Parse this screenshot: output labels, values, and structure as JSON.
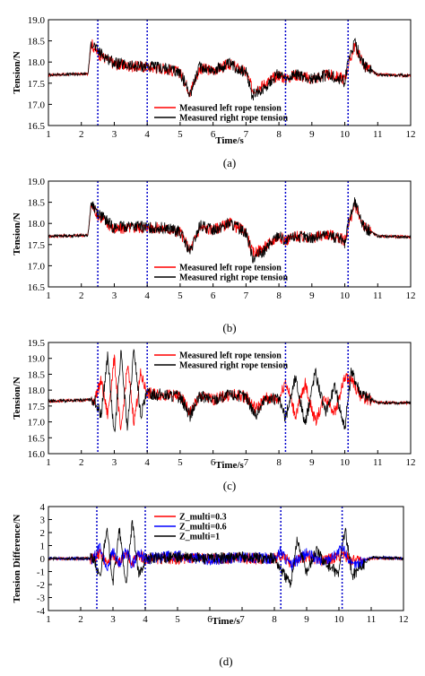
{
  "chart_data": [
    {
      "type": "line",
      "panel": "a",
      "caption": "(a)",
      "xlabel": "Time/s",
      "ylabel": "Tension/N",
      "xlim": [
        1,
        12
      ],
      "ylim": [
        16.5,
        19.0
      ],
      "xticks": [
        "1",
        "2",
        "3",
        "4",
        "5",
        "6",
        "7",
        "8",
        "9",
        "10",
        "11",
        "12"
      ],
      "yticks": [
        "16.5",
        "17.0",
        "17.5",
        "18.0",
        "18.5",
        "19.0"
      ],
      "vlines": [
        2.5,
        4.0,
        8.2,
        10.1
      ],
      "legend_position": "bottom-center",
      "series": [
        {
          "name": "Measured left rope tension",
          "color": "#ff0000",
          "x": [
            1,
            2.2,
            2.3,
            2.5,
            3,
            3.5,
            4,
            4.5,
            5,
            5.3,
            5.6,
            6,
            6.5,
            7,
            7.2,
            7.5,
            8,
            8.2,
            8.5,
            9,
            9.5,
            10,
            10.1,
            10.3,
            10.6,
            11,
            12
          ],
          "y": [
            17.7,
            17.72,
            18.45,
            18.2,
            17.95,
            17.9,
            17.88,
            17.85,
            17.75,
            17.3,
            17.85,
            17.8,
            17.95,
            17.75,
            17.35,
            17.45,
            17.7,
            17.6,
            17.7,
            17.6,
            17.7,
            17.6,
            17.9,
            18.4,
            17.9,
            17.7,
            17.68
          ]
        },
        {
          "name": "Measured right rope tension",
          "color": "#000000",
          "x": [
            1,
            2.2,
            2.3,
            2.5,
            3,
            3.5,
            4,
            4.5,
            5,
            5.3,
            5.6,
            6,
            6.5,
            7,
            7.2,
            7.5,
            8,
            8.2,
            8.5,
            9,
            9.5,
            10,
            10.1,
            10.3,
            10.6,
            11,
            12
          ],
          "y": [
            17.7,
            17.72,
            18.5,
            18.25,
            17.98,
            17.9,
            17.9,
            17.85,
            17.75,
            17.25,
            17.9,
            17.8,
            17.95,
            17.75,
            17.2,
            17.35,
            17.75,
            17.55,
            17.7,
            17.6,
            17.7,
            17.55,
            18.0,
            18.45,
            17.9,
            17.7,
            17.68
          ]
        }
      ]
    },
    {
      "type": "line",
      "panel": "b",
      "caption": "(b)",
      "xlabel": "",
      "ylabel": "Tension/N",
      "xlim": [
        1,
        12
      ],
      "ylim": [
        16.5,
        19.0
      ],
      "xticks": [
        "1",
        "2",
        "3",
        "4",
        "5",
        "6",
        "7",
        "8",
        "9",
        "10",
        "11",
        "12"
      ],
      "yticks": [
        "16.5",
        "17.0",
        "17.5",
        "18.0",
        "18.5",
        "19.0"
      ],
      "vlines": [
        2.5,
        4.0,
        8.2,
        10.1
      ],
      "legend_position": "bottom-center",
      "series": [
        {
          "name": "Measured left rope tension",
          "color": "#ff0000",
          "x": [
            1,
            2.2,
            2.3,
            2.5,
            3,
            3.5,
            4,
            4.5,
            5,
            5.3,
            5.6,
            6,
            6.5,
            7,
            7.2,
            7.5,
            8,
            8.2,
            8.5,
            9,
            9.5,
            10,
            10.1,
            10.3,
            10.6,
            11,
            12
          ],
          "y": [
            17.7,
            17.72,
            18.45,
            18.2,
            17.85,
            17.9,
            17.9,
            17.88,
            17.8,
            17.35,
            17.9,
            17.85,
            18.0,
            17.8,
            17.3,
            17.4,
            17.7,
            17.6,
            17.7,
            17.65,
            17.75,
            17.6,
            17.9,
            18.45,
            17.9,
            17.7,
            17.68
          ]
        },
        {
          "name": "Measured right rope tension",
          "color": "#000000",
          "x": [
            1,
            2.2,
            2.3,
            2.5,
            3,
            3.5,
            4,
            4.5,
            5,
            5.3,
            5.6,
            6,
            6.5,
            7,
            7.2,
            7.5,
            8,
            8.2,
            8.5,
            9,
            9.5,
            10,
            10.1,
            10.3,
            10.6,
            11,
            12
          ],
          "y": [
            17.7,
            17.72,
            18.5,
            18.25,
            17.9,
            17.95,
            17.9,
            17.9,
            17.8,
            17.3,
            17.95,
            17.85,
            18.0,
            17.8,
            17.2,
            17.3,
            17.75,
            17.55,
            17.7,
            17.65,
            17.75,
            17.55,
            18.0,
            18.5,
            17.9,
            17.7,
            17.68
          ]
        }
      ]
    },
    {
      "type": "line",
      "panel": "c",
      "caption": "(c)",
      "xlabel": "Time/s",
      "ylabel": "Tension/N",
      "xlim": [
        1,
        12
      ],
      "ylim": [
        16.0,
        19.5
      ],
      "xticks": [
        "1",
        "2",
        "3",
        "4",
        "5",
        "6",
        "7",
        "8",
        "9",
        "10",
        "11",
        "12"
      ],
      "yticks": [
        "16.0",
        "16.5",
        "17.0",
        "17.5",
        "18.0",
        "18.5",
        "19.0",
        "19.5"
      ],
      "vlines": [
        2.5,
        4.0,
        8.2,
        10.1
      ],
      "legend_position": "top-center",
      "series": [
        {
          "name": "Measured left rope tension",
          "color": "#ff0000",
          "x": [
            1,
            2.4,
            2.6,
            2.8,
            3.0,
            3.2,
            3.4,
            3.6,
            3.8,
            4.0,
            4.5,
            5,
            5.3,
            5.6,
            6,
            6.5,
            7,
            7.3,
            7.6,
            8,
            8.2,
            8.5,
            8.8,
            9.1,
            9.4,
            9.7,
            10.0,
            10.2,
            10.5,
            11,
            12
          ],
          "y": [
            17.65,
            17.7,
            18.3,
            17.2,
            19.0,
            16.6,
            18.8,
            17.0,
            18.5,
            17.9,
            17.85,
            17.8,
            17.3,
            17.8,
            17.7,
            17.85,
            17.8,
            17.4,
            17.75,
            17.7,
            18.3,
            17.2,
            18.2,
            17.0,
            17.8,
            17.3,
            18.4,
            18.3,
            17.8,
            17.6,
            17.6
          ]
        },
        {
          "name": "Measured right rope tension",
          "color": "#000000",
          "x": [
            1,
            2.4,
            2.6,
            2.8,
            3.0,
            3.2,
            3.4,
            3.6,
            3.8,
            4.0,
            4.5,
            5,
            5.3,
            5.6,
            6,
            6.5,
            7,
            7.3,
            7.6,
            8,
            8.2,
            8.5,
            8.8,
            9.1,
            9.4,
            9.7,
            10.0,
            10.2,
            10.5,
            11,
            12
          ],
          "y": [
            17.65,
            17.7,
            17.2,
            19.1,
            16.5,
            19.2,
            16.8,
            19.3,
            17.2,
            17.9,
            17.85,
            17.8,
            17.2,
            17.8,
            17.7,
            17.85,
            17.8,
            17.2,
            17.75,
            17.7,
            17.1,
            18.4,
            16.9,
            18.6,
            17.3,
            18.1,
            16.8,
            18.6,
            17.9,
            17.6,
            17.6
          ]
        }
      ]
    },
    {
      "type": "line",
      "panel": "d",
      "caption": "(d)",
      "xlabel": "Time/s",
      "ylabel": "Tension Difference/N",
      "xlim": [
        1,
        12
      ],
      "ylim": [
        -4,
        4
      ],
      "xticks": [
        "1",
        "2",
        "3",
        "4",
        "5",
        "6",
        "7",
        "8",
        "9",
        "10",
        "11",
        "12"
      ],
      "yticks": [
        "-4",
        "-3",
        "-2",
        "-1",
        "0",
        "1",
        "2",
        "3",
        "4"
      ],
      "vlines": [
        2.5,
        4.0,
        8.2,
        10.1
      ],
      "legend_position": "top-center",
      "series": [
        {
          "name": "Z_multi=0.3",
          "color": "#ff0000",
          "x": [
            1,
            2.4,
            2.6,
            2.8,
            3.0,
            3.2,
            3.4,
            3.6,
            3.8,
            4.0,
            5,
            6,
            7,
            8,
            8.2,
            8.5,
            9,
            9.5,
            10,
            10.1,
            10.2,
            10.4,
            11,
            12
          ],
          "y": [
            0,
            0,
            0.4,
            -0.4,
            0.3,
            -0.3,
            0.3,
            -0.3,
            0.3,
            0,
            0,
            0,
            0,
            0,
            0.3,
            -0.3,
            0.2,
            -0.2,
            0.2,
            0.4,
            0.2,
            -0.2,
            0,
            0
          ]
        },
        {
          "name": "Z_multi=0.6",
          "color": "#0000ff",
          "x": [
            1,
            2.4,
            2.6,
            2.8,
            3.0,
            3.2,
            3.4,
            3.6,
            3.8,
            4.0,
            5,
            6,
            7,
            8,
            8.2,
            8.5,
            9,
            9.5,
            10,
            10.1,
            10.2,
            10.4,
            11,
            12
          ],
          "y": [
            0,
            0,
            0.9,
            -0.8,
            0.6,
            -0.6,
            0.6,
            -0.5,
            0.5,
            0,
            0.2,
            -0.1,
            0.1,
            0,
            0.6,
            -0.6,
            0.4,
            -0.3,
            0.5,
            0.9,
            0.5,
            -0.6,
            0.1,
            0
          ]
        },
        {
          "name": "Z_multi=1",
          "color": "#000000",
          "x": [
            1,
            2.4,
            2.6,
            2.8,
            3.0,
            3.2,
            3.4,
            3.6,
            3.8,
            4.0,
            5,
            6,
            7,
            8,
            8.2,
            8.5,
            8.7,
            9.0,
            9.3,
            9.6,
            10.0,
            10.1,
            10.2,
            10.4,
            11,
            12
          ],
          "y": [
            0,
            0,
            -1.6,
            2.4,
            -1.8,
            2.2,
            -2.0,
            2.7,
            -1.4,
            0,
            0.1,
            0,
            0.1,
            0,
            -0.8,
            -2.0,
            1.4,
            -1.0,
            0.6,
            -0.4,
            -1.2,
            1.2,
            2.1,
            -1.3,
            0.1,
            0
          ]
        }
      ]
    }
  ]
}
